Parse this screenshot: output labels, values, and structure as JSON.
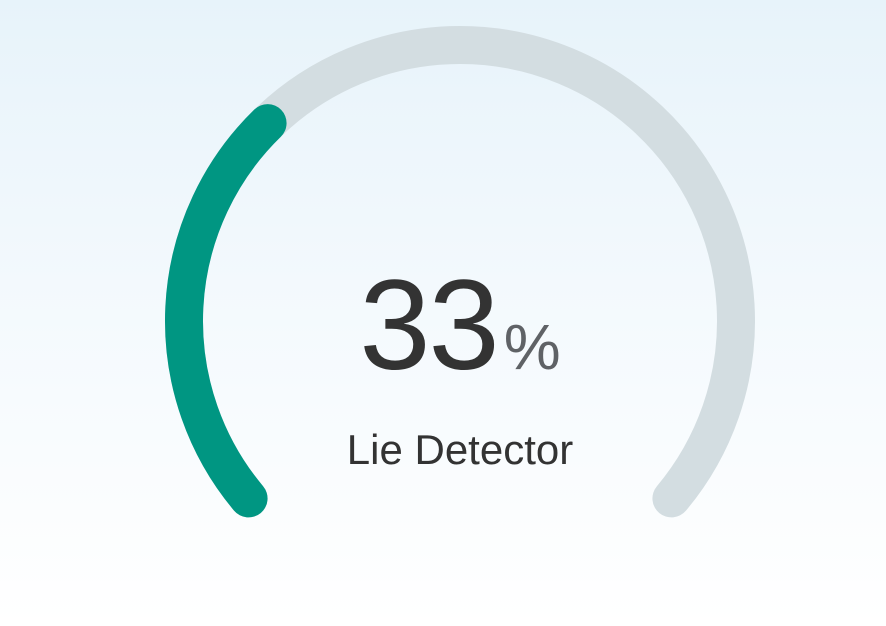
{
  "gauge": {
    "value": 33,
    "value_text": "33",
    "unit": "%",
    "label": "Lie Detector",
    "min": 0,
    "max": 100,
    "colors": {
      "fill": "#009682",
      "track": "#d3dde1"
    }
  }
}
